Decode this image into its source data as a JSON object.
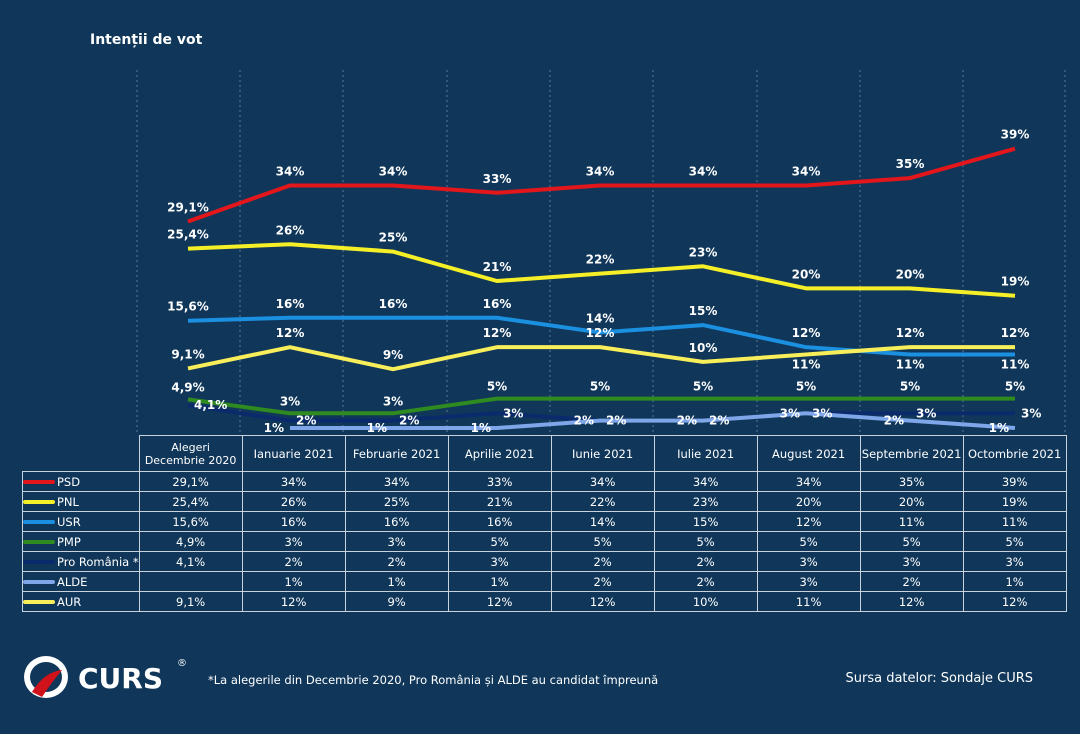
{
  "chart_data": {
    "type": "line",
    "title": "Intenții de vot",
    "categories": [
      "Alegeri Decembrie 2020",
      "Ianuarie 2021",
      "Februarie 2021",
      "Aprilie 2021",
      "Iunie 2021",
      "Iulie 2021",
      "August 2021",
      "Septembrie 2021",
      "Octombrie 2021"
    ],
    "unit": "%",
    "ylim": [
      0,
      40
    ],
    "grid": "vertical dotted",
    "legend": "table below chart",
    "series": [
      {
        "name": "PSD",
        "color": "#e3161b",
        "values": [
          29.1,
          34,
          34,
          33,
          34,
          34,
          34,
          35,
          39
        ]
      },
      {
        "name": "PNL",
        "color": "#f5ef27",
        "values": [
          25.4,
          26,
          25,
          21,
          22,
          23,
          20,
          20,
          19
        ]
      },
      {
        "name": "USR",
        "color": "#1b8fe0",
        "values": [
          15.6,
          16,
          16,
          16,
          14,
          15,
          12,
          11,
          11
        ]
      },
      {
        "name": "PMP",
        "color": "#2f8a1f",
        "values": [
          4.9,
          3,
          3,
          5,
          5,
          5,
          5,
          5,
          5
        ]
      },
      {
        "name": "Pro România *",
        "color": "#0a2a6b",
        "values": [
          4.1,
          2,
          2,
          3,
          2,
          2,
          3,
          3,
          3
        ]
      },
      {
        "name": "ALDE",
        "color": "#7ea6e8",
        "values": [
          null,
          1,
          1,
          1,
          2,
          2,
          3,
          2,
          1
        ]
      },
      {
        "name": "AUR",
        "color": "#f7ee5a",
        "values": [
          9.1,
          12,
          9,
          12,
          12,
          10,
          11,
          12,
          12
        ]
      }
    ]
  },
  "footer": {
    "logo": "CURS®",
    "note": "*La alegerile din Decembrie 2020, Pro România și ALDE au candidat împreună",
    "source": "Sursa datelor: Sondaje CURS"
  }
}
